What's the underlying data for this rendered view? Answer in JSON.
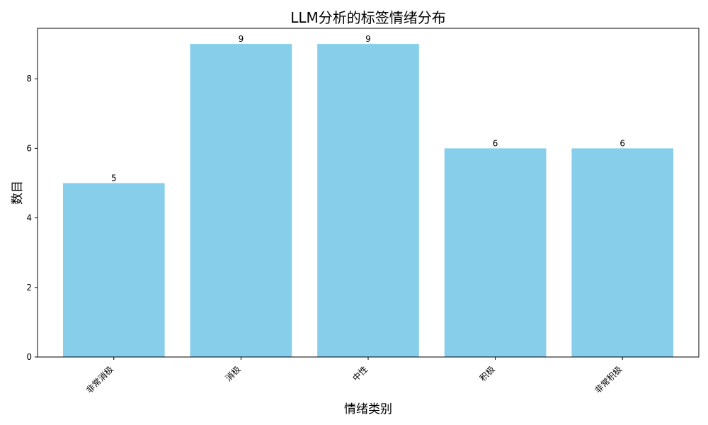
{
  "chart_data": {
    "type": "bar",
    "title": "LLM分析的标签情绪分布",
    "xlabel": "情绪类别",
    "ylabel": "数目",
    "categories": [
      "非常消极",
      "消极",
      "中性",
      "积极",
      "非常积极"
    ],
    "values": [
      5,
      9,
      9,
      6,
      6
    ],
    "ylim": [
      0,
      9.45
    ],
    "yticks": [
      0,
      2,
      4,
      6,
      8
    ],
    "grid": false,
    "legend": "none",
    "bar_color": "#87ceeb",
    "xtick_rotation": 45,
    "data_labels": true
  }
}
